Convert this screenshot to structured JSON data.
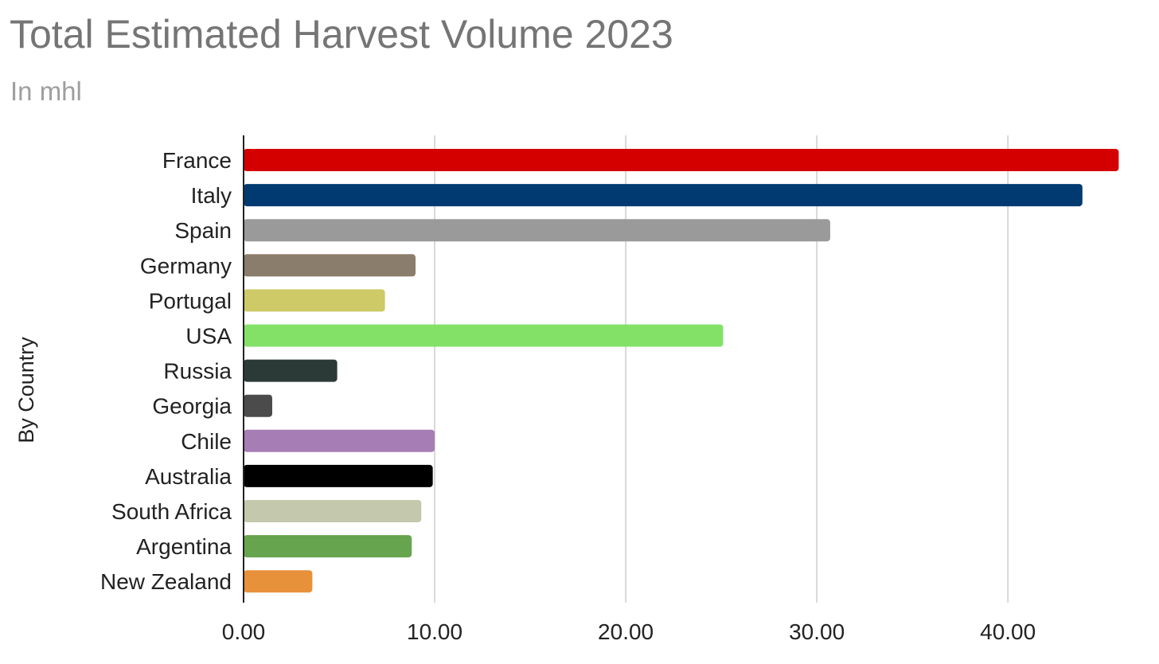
{
  "chart_data": {
    "type": "bar",
    "orientation": "horizontal",
    "title": "Total Estimated Harvest Volume 2023",
    "subtitle": "In mhl",
    "xlabel": "",
    "ylabel": "By Country",
    "xlim": [
      0,
      45.7
    ],
    "xticks": [
      0,
      10,
      20,
      30,
      40
    ],
    "xtick_labels": [
      "0.00",
      "10.00",
      "20.00",
      "30.00",
      "40.00"
    ],
    "grid": true,
    "legend": "none",
    "categories": [
      "France",
      "Italy",
      "Spain",
      "Germany",
      "Portugal",
      "USA",
      "Russia",
      "Georgia",
      "Chile",
      "Australia",
      "South Africa",
      "Argentina",
      "New Zealand"
    ],
    "values": [
      45.8,
      43.9,
      30.7,
      9.0,
      7.4,
      25.1,
      4.9,
      1.5,
      10.0,
      9.9,
      9.3,
      8.8,
      3.6
    ],
    "colors": [
      "#d40000",
      "#003a70",
      "#9a9a9a",
      "#8b7d6b",
      "#cdca67",
      "#83e168",
      "#2c3a37",
      "#4b4b4b",
      "#a77db5",
      "#000000",
      "#c4c9ae",
      "#66a44d",
      "#e8913b"
    ]
  }
}
